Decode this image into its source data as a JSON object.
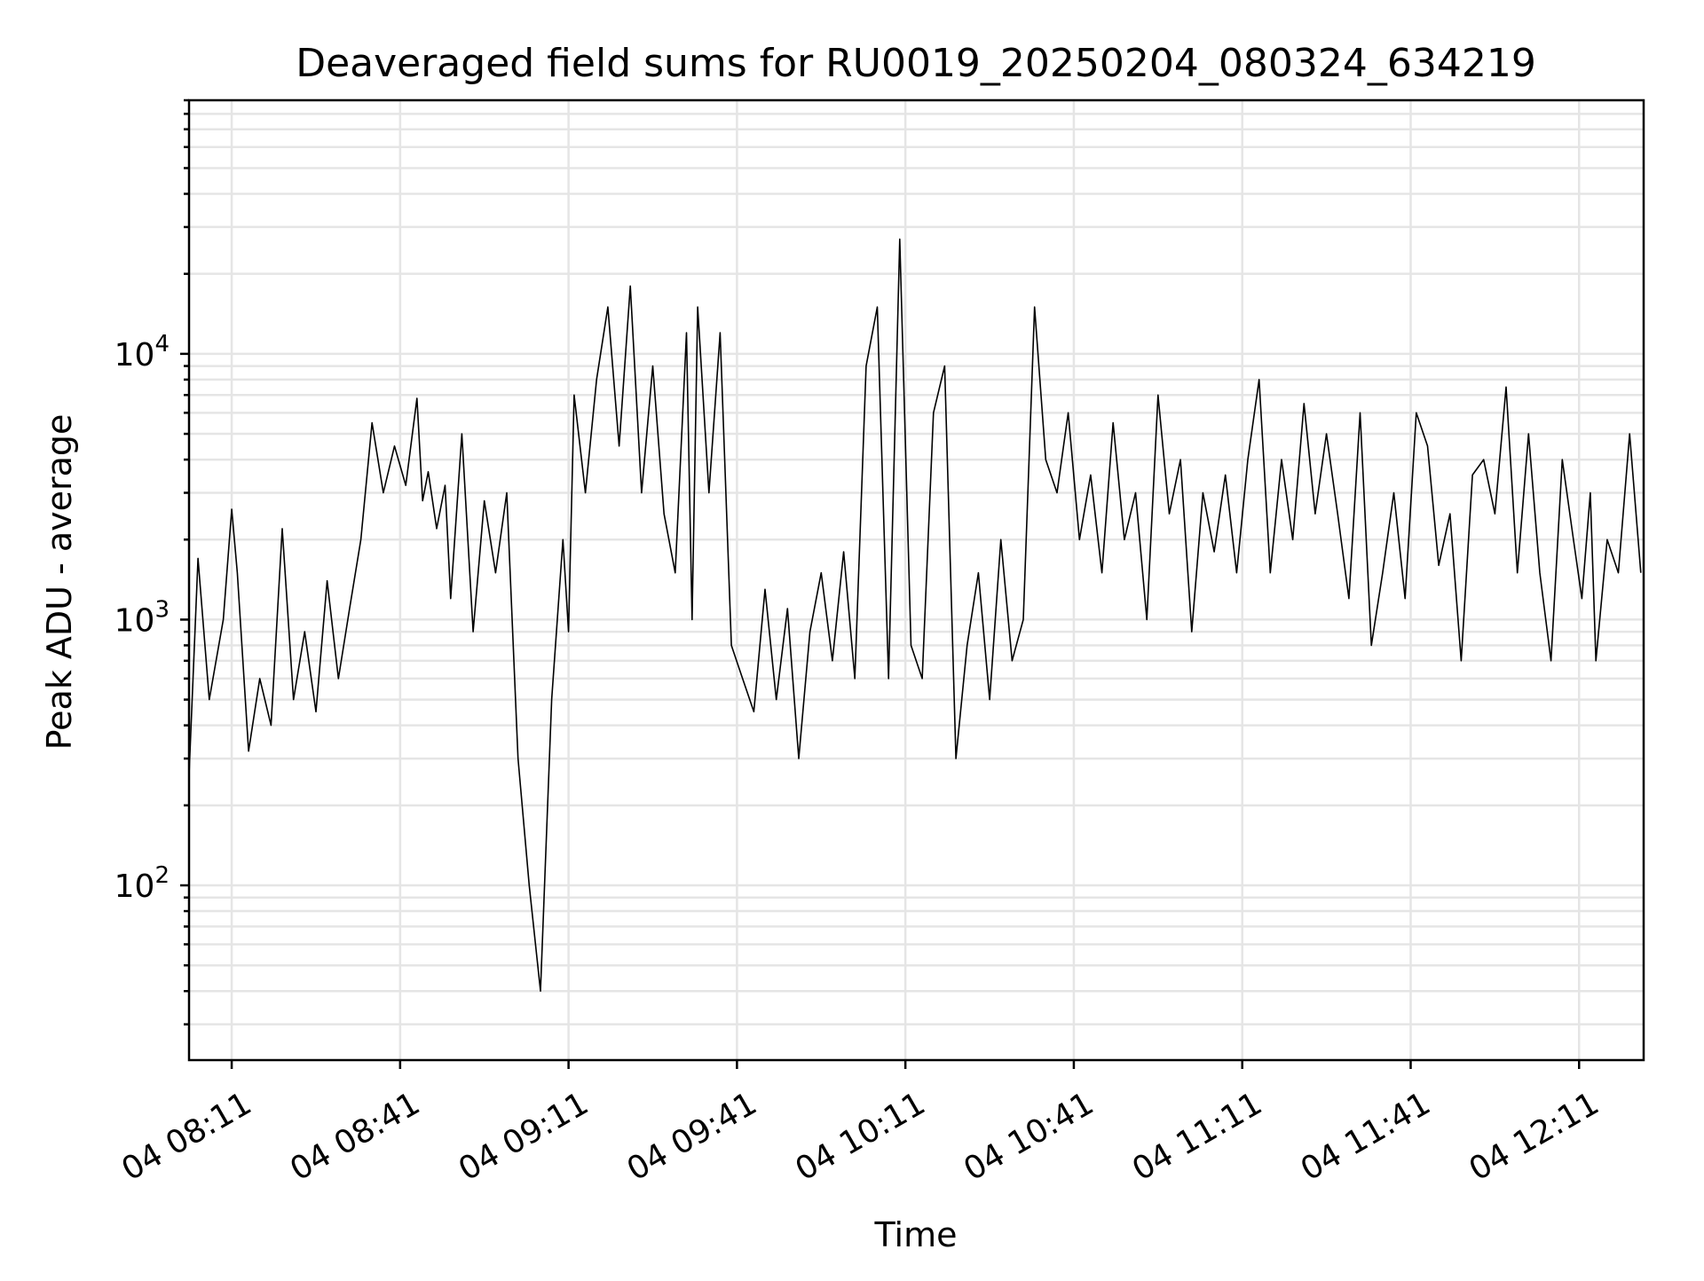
{
  "chart_data": {
    "type": "line",
    "title": "Deaveraged field sums for RU0019_20250204_080324_634219",
    "xlabel": "Time",
    "ylabel": "Peak ADU - average",
    "y_scale": "log",
    "ylim": [
      22,
      90000
    ],
    "xlim": [
      "2025-02-04 08:03:24",
      "2025-02-04 12:22:30"
    ],
    "x_ticks": [
      {
        "t": "2025-02-04 08:11",
        "label": "04 08:11"
      },
      {
        "t": "2025-02-04 08:41",
        "label": "04 08:41"
      },
      {
        "t": "2025-02-04 09:11",
        "label": "04 09:11"
      },
      {
        "t": "2025-02-04 09:41",
        "label": "04 09:41"
      },
      {
        "t": "2025-02-04 10:11",
        "label": "04 10:11"
      },
      {
        "t": "2025-02-04 10:41",
        "label": "04 10:41"
      },
      {
        "t": "2025-02-04 11:11",
        "label": "04 11:11"
      },
      {
        "t": "2025-02-04 11:41",
        "label": "04 11:41"
      },
      {
        "t": "2025-02-04 12:11",
        "label": "04 12:11"
      }
    ],
    "y_ticks": [
      {
        "value": 100,
        "base": "10",
        "exp": "2"
      },
      {
        "value": 1000,
        "base": "10",
        "exp": "3"
      },
      {
        "value": 10000,
        "base": "10",
        "exp": "4"
      }
    ],
    "grid": true,
    "line_color": "#000000",
    "grid_color": "#e5e5e5",
    "series": [
      {
        "x": [
          "2025-02-04 08:03:24",
          "2025-02-04 08:05:00",
          "2025-02-04 08:07:00",
          "2025-02-04 08:09:30",
          "2025-02-04 08:11:00",
          "2025-02-04 08:12:00",
          "2025-02-04 08:14:00",
          "2025-02-04 08:16:00",
          "2025-02-04 08:18:00",
          "2025-02-04 08:20:00",
          "2025-02-04 08:22:00",
          "2025-02-04 08:24:00",
          "2025-02-04 08:26:00",
          "2025-02-04 08:28:00",
          "2025-02-04 08:30:00",
          "2025-02-04 08:32:00",
          "2025-02-04 08:34:00",
          "2025-02-04 08:36:00",
          "2025-02-04 08:38:00",
          "2025-02-04 08:40:00",
          "2025-02-04 08:42:00",
          "2025-02-04 08:44:00",
          "2025-02-04 08:45:00",
          "2025-02-04 08:46:00",
          "2025-02-04 08:47:30",
          "2025-02-04 08:49:00",
          "2025-02-04 08:50:00",
          "2025-02-04 08:52:00",
          "2025-02-04 08:54:00",
          "2025-02-04 08:56:00",
          "2025-02-04 08:58:00",
          "2025-02-04 09:00:00",
          "2025-02-04 09:02:00",
          "2025-02-04 09:04:00",
          "2025-02-04 09:06:00",
          "2025-02-04 09:08:00",
          "2025-02-04 09:10:00",
          "2025-02-04 09:11:00",
          "2025-02-04 09:12:00",
          "2025-02-04 09:14:00",
          "2025-02-04 09:16:00",
          "2025-02-04 09:18:00",
          "2025-02-04 09:20:00",
          "2025-02-04 09:22:00",
          "2025-02-04 09:24:00",
          "2025-02-04 09:26:00",
          "2025-02-04 09:28:00",
          "2025-02-04 09:30:00",
          "2025-02-04 09:32:00",
          "2025-02-04 09:33:00",
          "2025-02-04 09:34:00",
          "2025-02-04 09:36:00",
          "2025-02-04 09:38:00",
          "2025-02-04 09:40:00",
          "2025-02-04 09:42:00",
          "2025-02-04 09:44:00",
          "2025-02-04 09:46:00",
          "2025-02-04 09:48:00",
          "2025-02-04 09:50:00",
          "2025-02-04 09:52:00",
          "2025-02-04 09:54:00",
          "2025-02-04 09:56:00",
          "2025-02-04 09:58:00",
          "2025-02-04 10:00:00",
          "2025-02-04 10:02:00",
          "2025-02-04 10:04:00",
          "2025-02-04 10:06:00",
          "2025-02-04 10:08:00",
          "2025-02-04 10:10:00",
          "2025-02-04 10:12:00",
          "2025-02-04 10:14:00",
          "2025-02-04 10:16:00",
          "2025-02-04 10:18:00",
          "2025-02-04 10:20:00",
          "2025-02-04 10:22:00",
          "2025-02-04 10:24:00",
          "2025-02-04 10:26:00",
          "2025-02-04 10:28:00",
          "2025-02-04 10:30:00",
          "2025-02-04 10:32:00",
          "2025-02-04 10:34:00",
          "2025-02-04 10:36:00",
          "2025-02-04 10:38:00",
          "2025-02-04 10:40:00",
          "2025-02-04 10:42:00",
          "2025-02-04 10:44:00",
          "2025-02-04 10:46:00",
          "2025-02-04 10:48:00",
          "2025-02-04 10:50:00",
          "2025-02-04 10:52:00",
          "2025-02-04 10:54:00",
          "2025-02-04 10:56:00",
          "2025-02-04 10:58:00",
          "2025-02-04 11:00:00",
          "2025-02-04 11:02:00",
          "2025-02-04 11:04:00",
          "2025-02-04 11:06:00",
          "2025-02-04 11:08:00",
          "2025-02-04 11:10:00",
          "2025-02-04 11:12:00",
          "2025-02-04 11:14:00",
          "2025-02-04 11:16:00",
          "2025-02-04 11:18:00",
          "2025-02-04 11:20:00",
          "2025-02-04 11:22:00",
          "2025-02-04 11:24:00",
          "2025-02-04 11:26:00",
          "2025-02-04 11:28:00",
          "2025-02-04 11:30:00",
          "2025-02-04 11:32:00",
          "2025-02-04 11:34:00",
          "2025-02-04 11:36:00",
          "2025-02-04 11:38:00",
          "2025-02-04 11:40:00",
          "2025-02-04 11:42:00",
          "2025-02-04 11:44:00",
          "2025-02-04 11:46:00",
          "2025-02-04 11:48:00",
          "2025-02-04 11:50:00",
          "2025-02-04 11:52:00",
          "2025-02-04 11:54:00",
          "2025-02-04 11:56:00",
          "2025-02-04 11:58:00",
          "2025-02-04 12:00:00",
          "2025-02-04 12:02:00",
          "2025-02-04 12:04:00",
          "2025-02-04 12:06:00",
          "2025-02-04 12:08:00",
          "2025-02-04 12:10:00",
          "2025-02-04 12:11:30",
          "2025-02-04 12:13:00",
          "2025-02-04 12:14:00",
          "2025-02-04 12:16:00",
          "2025-02-04 12:18:00",
          "2025-02-04 12:20:00",
          "2025-02-04 12:22:00"
        ],
        "y": [
          260,
          1700,
          500,
          1000,
          2600,
          1500,
          320,
          600,
          400,
          2200,
          500,
          900,
          450,
          1400,
          600,
          1100,
          2000,
          5500,
          3000,
          4500,
          3200,
          6800,
          2800,
          3600,
          2200,
          3200,
          1200,
          5000,
          900,
          2800,
          1500,
          3000,
          300,
          100,
          40,
          500,
          2000,
          900,
          7000,
          3000,
          8000,
          15000,
          4500,
          18000,
          3000,
          9000,
          2500,
          1500,
          12000,
          1000,
          15000,
          3000,
          12000,
          800,
          600,
          450,
          1300,
          500,
          1100,
          300,
          900,
          1500,
          700,
          1800,
          600,
          9000,
          15000,
          600,
          27000,
          800,
          600,
          6000,
          9000,
          300,
          800,
          1500,
          500,
          2000,
          700,
          1000,
          15000,
          4000,
          3000,
          6000,
          2000,
          3500,
          1500,
          5500,
          2000,
          3000,
          1000,
          7000,
          2500,
          4000,
          900,
          3000,
          1800,
          3500,
          1500,
          4000,
          8000,
          1500,
          4000,
          2000,
          6500,
          2500,
          5000,
          2500,
          1200,
          6000,
          800,
          1500,
          3000,
          1200,
          6000,
          4500,
          1600,
          2500,
          700,
          3500,
          4000,
          2500,
          7500,
          1500,
          5000,
          1500,
          700,
          4000,
          2000,
          1200,
          3000,
          700,
          2000,
          1500,
          5000,
          1500
        ]
      }
    ]
  }
}
